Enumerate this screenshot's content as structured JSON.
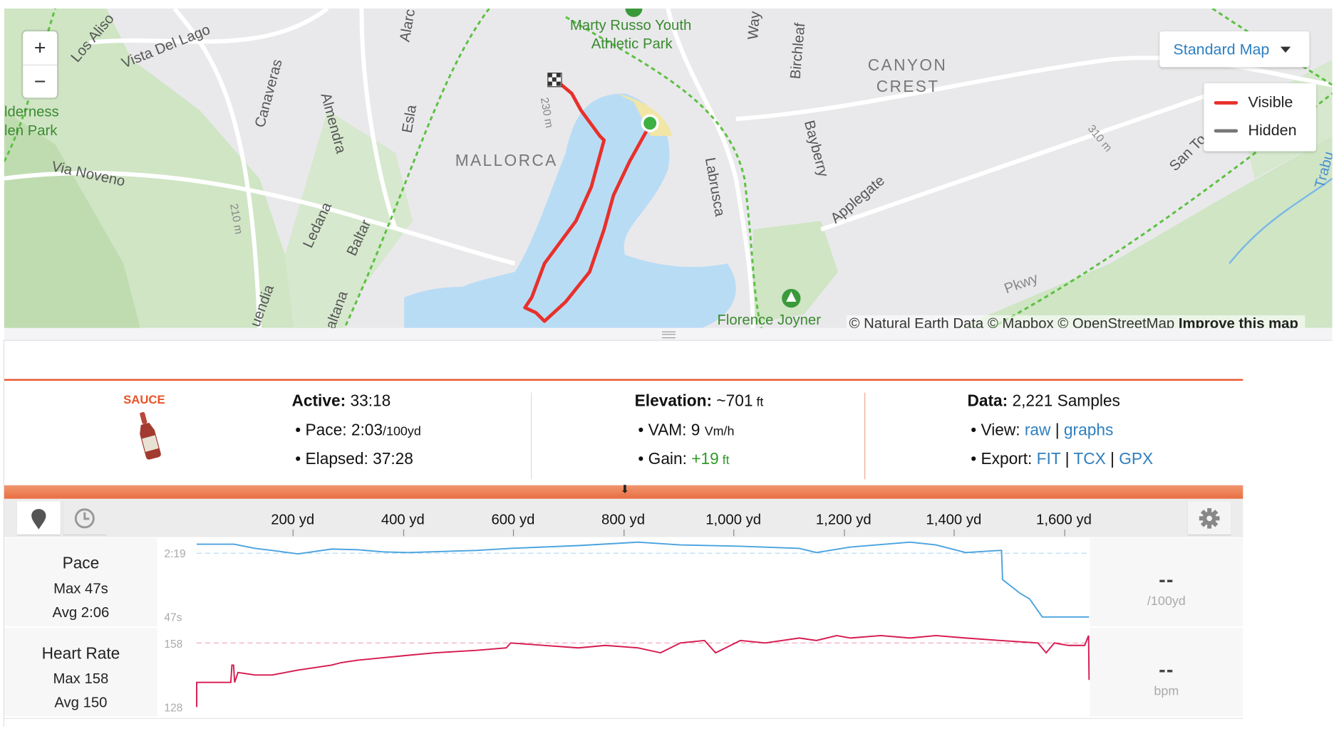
{
  "map": {
    "zoom_in": "+",
    "zoom_out": "−",
    "style_select": "Standard Map",
    "legend": [
      {
        "label": "Visible",
        "color": "#e8302a"
      },
      {
        "label": "Hidden",
        "color": "#777777"
      }
    ],
    "labels": {
      "park1": "Marty Russo Youth",
      "park1b": "Athletic Park",
      "canyon": "CANYON",
      "crest": "CREST",
      "mallorca": "MALLORCA",
      "wilderness": "lderness",
      "glenpark": "len Park",
      "vista": "Vista Del Lago",
      "losalisos": "Los Aliso",
      "vianoveno": "Via Noveno",
      "canaveras": "Canaveras",
      "almendra": "Almendra",
      "esla": "Esla",
      "ledana": "Ledana",
      "baltar": "Baltar",
      "labrusca": "Labrusca",
      "bayberry": "Bayberry",
      "birchleaf": "Birchleaf",
      "applegate": "Applegate",
      "santo": "San To",
      "florence": "Florence Joyner",
      "contour1": "230 m",
      "contour2": "310 m",
      "contour3": "210 m",
      "way": "Way",
      "alarc": "Alarc",
      "cuendia": "uendia",
      "altana": "altana",
      "pkwy": "Pkwy",
      "trabu": "Trabu"
    },
    "attribution": "© Natural Earth Data © Mapbox © OpenStreetMap",
    "improve_link": "Improve this map",
    "route_color": "#e8302a",
    "start_color": "#3cb043"
  },
  "stats": {
    "logo_text": "SAUCE",
    "active_label": "Active:",
    "active": "33:18",
    "pace_label": "Pace:",
    "pace": "2:03",
    "pace_unit": "/100yd",
    "elapsed_label": "Elapsed:",
    "elapsed": "37:28",
    "elevation_label": "Elevation:",
    "elevation": "~701",
    "elevation_unit": "ft",
    "vam_label": "VAM:",
    "vam": "9",
    "vam_unit": "Vm/h",
    "gain_label": "Gain:",
    "gain": "+19",
    "gain_unit": "ft",
    "data_label": "Data:",
    "data": "2,221 Samples",
    "view_label": "View:",
    "view_links": [
      "raw",
      "graphs"
    ],
    "export_label": "Export:",
    "export_links": [
      "FIT",
      "TCX",
      "GPX"
    ],
    "accent": "#e8532a"
  },
  "charts_header": {
    "ticks": [
      "200 yd",
      "400 yd",
      "600 yd",
      "800 yd",
      "1,000 yd",
      "1,200 yd",
      "1,400 yd",
      "1,600 yd"
    ]
  },
  "chart_data": [
    {
      "type": "line",
      "name": "Pace",
      "stats": {
        "max": "Max 47s",
        "avg": "Avg 2:06"
      },
      "current": "--",
      "unit": "/100yd",
      "yticks": [
        "2:19",
        "47s"
      ],
      "reference": "2:19",
      "color": "#4aa3df",
      "x_unit": "yd",
      "x": [
        18,
        86,
        124,
        155,
        202,
        263,
        310,
        356,
        402,
        526,
        588,
        711,
        819,
        896,
        1005,
        1112,
        1143,
        1205,
        1313,
        1360,
        1414,
        1476,
        1479,
        1481,
        1513,
        1530,
        1553,
        1638
      ],
      "y": [
        "2:32",
        "2:32",
        "2:26",
        "2:23",
        "2:18",
        "2:25",
        "2:24",
        "2:21",
        "2:20",
        "2:23",
        "2:26",
        "2:30",
        "2:35",
        "2:31",
        "2:29",
        "2:26",
        "2:20",
        "2:28",
        "2:35",
        "2:31",
        "2:20",
        "2:23",
        "2:23",
        "1:41",
        "1:21",
        "1:13",
        "0:47",
        "0:47"
      ]
    },
    {
      "type": "line",
      "name": "Heart Rate",
      "stats": {
        "max": "Max 158",
        "avg": "Avg 150"
      },
      "current": "--",
      "unit": "bpm",
      "yticks": [
        "158",
        "128"
      ],
      "reference": 154,
      "color": "#d6194f",
      "x_unit": "yd",
      "x": [
        18,
        18,
        80,
        82,
        85,
        87,
        93,
        124,
        155,
        202,
        263,
        280,
        310,
        356,
        402,
        450,
        526,
        580,
        588,
        650,
        711,
        760,
        819,
        860,
        896,
        940,
        960,
        1005,
        1050,
        1112,
        1143,
        1180,
        1205,
        1260,
        1313,
        1360,
        1414,
        1476,
        1545,
        1560,
        1575,
        1600,
        1630,
        1637,
        1638
      ],
      "y": [
        128,
        138,
        138,
        145,
        145,
        138,
        142,
        141,
        141,
        143,
        145,
        146,
        147,
        148,
        149,
        150,
        151,
        152,
        154,
        153,
        152,
        153,
        152,
        150,
        154,
        155,
        150,
        155,
        154,
        156,
        155,
        157,
        156,
        157,
        156,
        157,
        156,
        155,
        154,
        150,
        154,
        153,
        153,
        157,
        139
      ]
    }
  ]
}
